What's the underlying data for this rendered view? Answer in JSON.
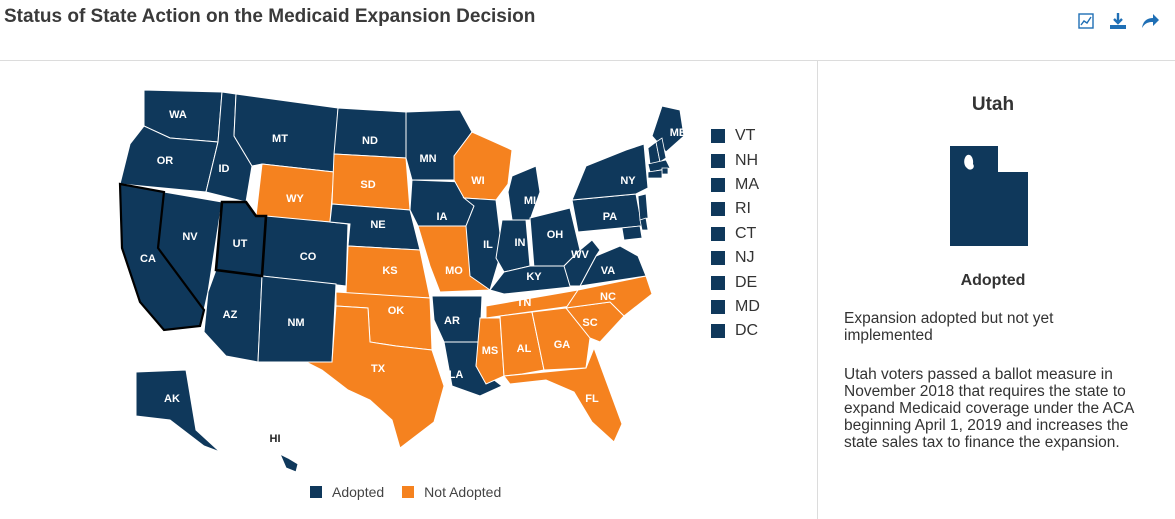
{
  "title": "Status of State Action on the Medicaid Expansion Decision",
  "toolbar": {
    "chart_icon": "chart-icon",
    "download_icon": "download-icon",
    "share_icon": "share-icon"
  },
  "colors": {
    "adopted": "#0f385b",
    "not_adopted": "#f5821f",
    "border": "#ffffff",
    "highlight": "#000000",
    "accent": "#1f6fb5"
  },
  "legend": [
    {
      "label": "Adopted",
      "key": "adopted"
    },
    {
      "label": "Not Adopted",
      "key": "not_adopted"
    }
  ],
  "map": {
    "selected_state": "UT",
    "state_labels": [
      "WA",
      "OR",
      "CA",
      "NV",
      "ID",
      "MT",
      "WY",
      "UT",
      "CO",
      "AZ",
      "NM",
      "ND",
      "SD",
      "NE",
      "KS",
      "OK",
      "TX",
      "MN",
      "IA",
      "MO",
      "AR",
      "LA",
      "WI",
      "IL",
      "MI",
      "IN",
      "OH",
      "KY",
      "TN",
      "MS",
      "AL",
      "GA",
      "FL",
      "SC",
      "NC",
      "VA",
      "WV",
      "PA",
      "NY",
      "ME",
      "AK",
      "HI"
    ]
  },
  "states": {
    "WA": "adopted",
    "OR": "adopted",
    "CA": "adopted",
    "NV": "adopted",
    "ID": "adopted",
    "MT": "adopted",
    "WY": "not_adopted",
    "UT": "adopted",
    "CO": "adopted",
    "AZ": "adopted",
    "NM": "adopted",
    "ND": "adopted",
    "SD": "not_adopted",
    "NE": "adopted",
    "KS": "not_adopted",
    "OK": "not_adopted",
    "TX": "not_adopted",
    "MN": "adopted",
    "IA": "adopted",
    "MO": "not_adopted",
    "AR": "adopted",
    "LA": "adopted",
    "WI": "not_adopted",
    "IL": "adopted",
    "MI": "adopted",
    "IN": "adopted",
    "OH": "adopted",
    "KY": "adopted",
    "TN": "not_adopted",
    "MS": "not_adopted",
    "AL": "not_adopted",
    "GA": "not_adopted",
    "FL": "not_adopted",
    "SC": "not_adopted",
    "NC": "not_adopted",
    "VA": "adopted",
    "WV": "adopted",
    "PA": "adopted",
    "NY": "adopted",
    "ME": "adopted",
    "AK": "adopted",
    "HI": "adopted",
    "VT": "adopted",
    "NH": "adopted",
    "MA": "adopted",
    "RI": "adopted",
    "CT": "adopted",
    "NJ": "adopted",
    "DE": "adopted",
    "MD": "adopted",
    "DC": "adopted"
  },
  "small_states": [
    {
      "label": "VT",
      "status": "adopted"
    },
    {
      "label": "NH",
      "status": "adopted"
    },
    {
      "label": "MA",
      "status": "adopted"
    },
    {
      "label": "RI",
      "status": "adopted"
    },
    {
      "label": "CT",
      "status": "adopted"
    },
    {
      "label": "NJ",
      "status": "adopted"
    },
    {
      "label": "DE",
      "status": "adopted"
    },
    {
      "label": "MD",
      "status": "adopted"
    },
    {
      "label": "DC",
      "status": "adopted"
    }
  ],
  "panel": {
    "state_name": "Utah",
    "status": "Adopted",
    "line1": "Expansion adopted but not yet implemented",
    "line2": "Utah voters passed a ballot measure in November 2018 that requires the state to expand Medicaid coverage under the ACA beginning April 1, 2019 and increases the state sales tax to finance the expansion."
  }
}
